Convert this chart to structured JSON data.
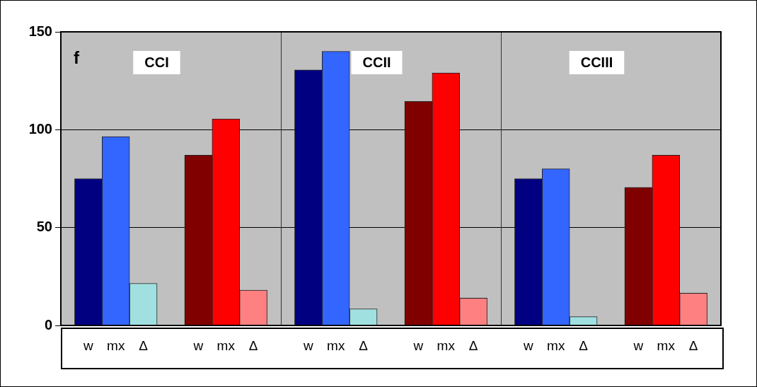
{
  "chart_data": {
    "type": "bar",
    "categories": [
      null,
      "w",
      "mx",
      "Δ",
      null,
      "w",
      "mx",
      "Δ",
      null,
      "w",
      "mx",
      "Δ",
      null,
      "w",
      "mx",
      "Δ",
      null,
      "w",
      "mx",
      "Δ",
      null,
      "w",
      "mx",
      "Δ",
      null
    ],
    "values": [
      null,
      75,
      96.5,
      21.5,
      null,
      87,
      105.5,
      18,
      null,
      130.5,
      140,
      8.5,
      null,
      114.5,
      129,
      14,
      null,
      75,
      80,
      4.5,
      null,
      70.5,
      87,
      16.5,
      null
    ],
    "colors": [
      null,
      "#000080",
      "#3366ff",
      "#a0e0e0",
      null,
      "#800000",
      "#ff0000",
      "#ff8080",
      null,
      "#000080",
      "#3366ff",
      "#a0e0e0",
      null,
      "#800000",
      "#ff0000",
      "#ff8080",
      null,
      "#000080",
      "#3366ff",
      "#a0e0e0",
      null,
      "#800000",
      "#ff0000",
      "#ff8080",
      null
    ],
    "ylim": [
      0,
      150
    ],
    "yticks": [
      0,
      50,
      100,
      150
    ],
    "grid": true,
    "annotations": [
      "f",
      "CCI",
      "CCII",
      "CCIII"
    ]
  }
}
